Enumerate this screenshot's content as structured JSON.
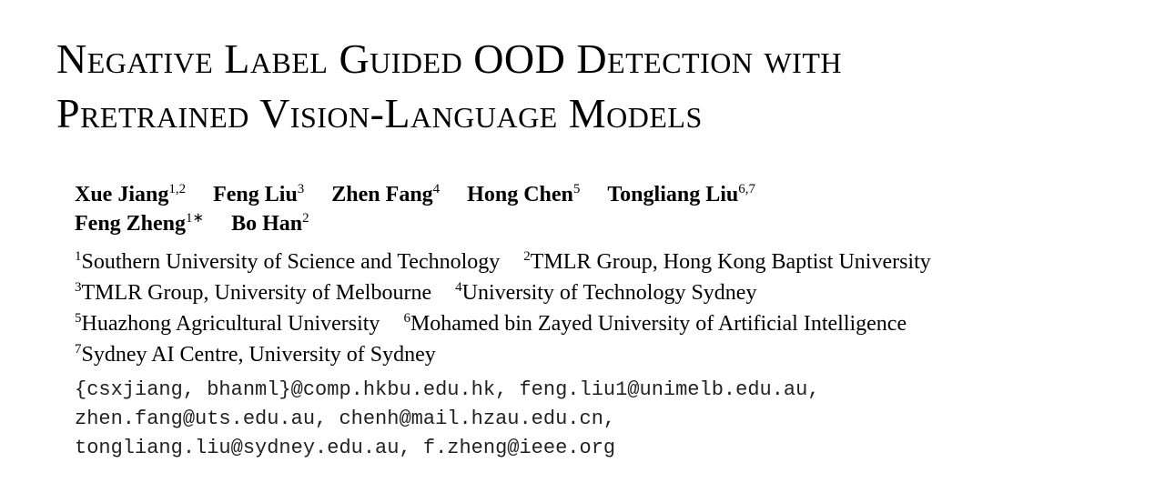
{
  "title": [
    "Negative Label Guided OOD Detection with",
    "Pretrained Vision-Language Models"
  ],
  "authors": [
    [
      {
        "name": "Xue Jiang",
        "sup": "1,2"
      },
      {
        "name": "Feng Liu",
        "sup": "3"
      },
      {
        "name": "Zhen Fang",
        "sup": "4"
      },
      {
        "name": "Hong Chen",
        "sup": "5"
      },
      {
        "name": "Tongliang Liu",
        "sup": "6,7"
      }
    ],
    [
      {
        "name": "Feng Zheng",
        "sup": "1∗"
      },
      {
        "name": "Bo Han",
        "sup": "2"
      }
    ]
  ],
  "affiliations": [
    [
      {
        "sup": "1",
        "text": "Southern University of Science and Technology"
      },
      {
        "sup": "2",
        "text": "TMLR Group, Hong Kong Baptist University"
      }
    ],
    [
      {
        "sup": "3",
        "text": "TMLR Group, University of Melbourne"
      },
      {
        "sup": "4",
        "text": "University of Technology Sydney"
      }
    ],
    [
      {
        "sup": "5",
        "text": "Huazhong Agricultural University"
      },
      {
        "sup": "6",
        "text": "Mohamed bin Zayed University of Artificial Intelligence"
      }
    ],
    [
      {
        "sup": "7",
        "text": "Sydney AI Centre, University of Sydney"
      }
    ]
  ],
  "emails": [
    "{csxjiang, bhanml}@comp.hkbu.edu.hk, feng.liu1@unimelb.edu.au,",
    "zhen.fang@uts.edu.au, chenh@mail.hzau.edu.cn,",
    "tongliang.liu@sydney.edu.au, f.zheng@ieee.org"
  ]
}
